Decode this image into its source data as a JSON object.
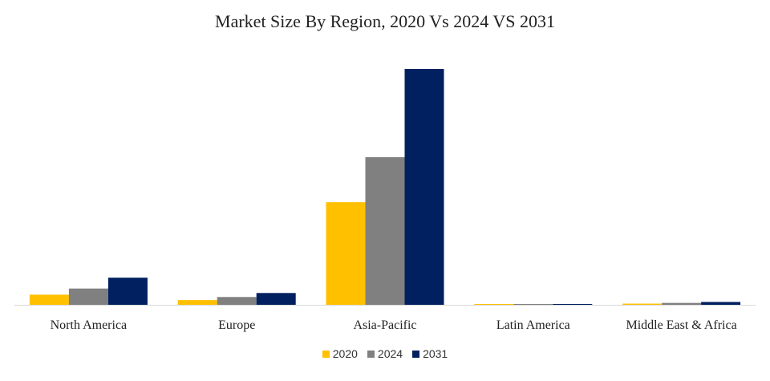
{
  "chart_data": {
    "type": "bar",
    "title": "Market Size By Region, 2020 Vs 2024 VS 2031",
    "xlabel": "",
    "ylabel": "",
    "grid": false,
    "legend_position": "bottom-center",
    "ylim": [
      0,
      100
    ],
    "categories": [
      "North America",
      "Europe",
      "Asia-Pacific",
      "Latin America",
      "Middle East & Africa"
    ],
    "series": [
      {
        "name": "2020",
        "color": "#FFC000",
        "values": [
          4.3,
          2.0,
          43.5,
          0.1,
          0.5
        ]
      },
      {
        "name": "2024",
        "color": "#808080",
        "values": [
          6.9,
          3.3,
          62.6,
          0.15,
          0.8
        ]
      },
      {
        "name": "2031",
        "color": "#002060",
        "values": [
          11.5,
          5.0,
          100,
          0.2,
          1.2
        ]
      }
    ]
  }
}
